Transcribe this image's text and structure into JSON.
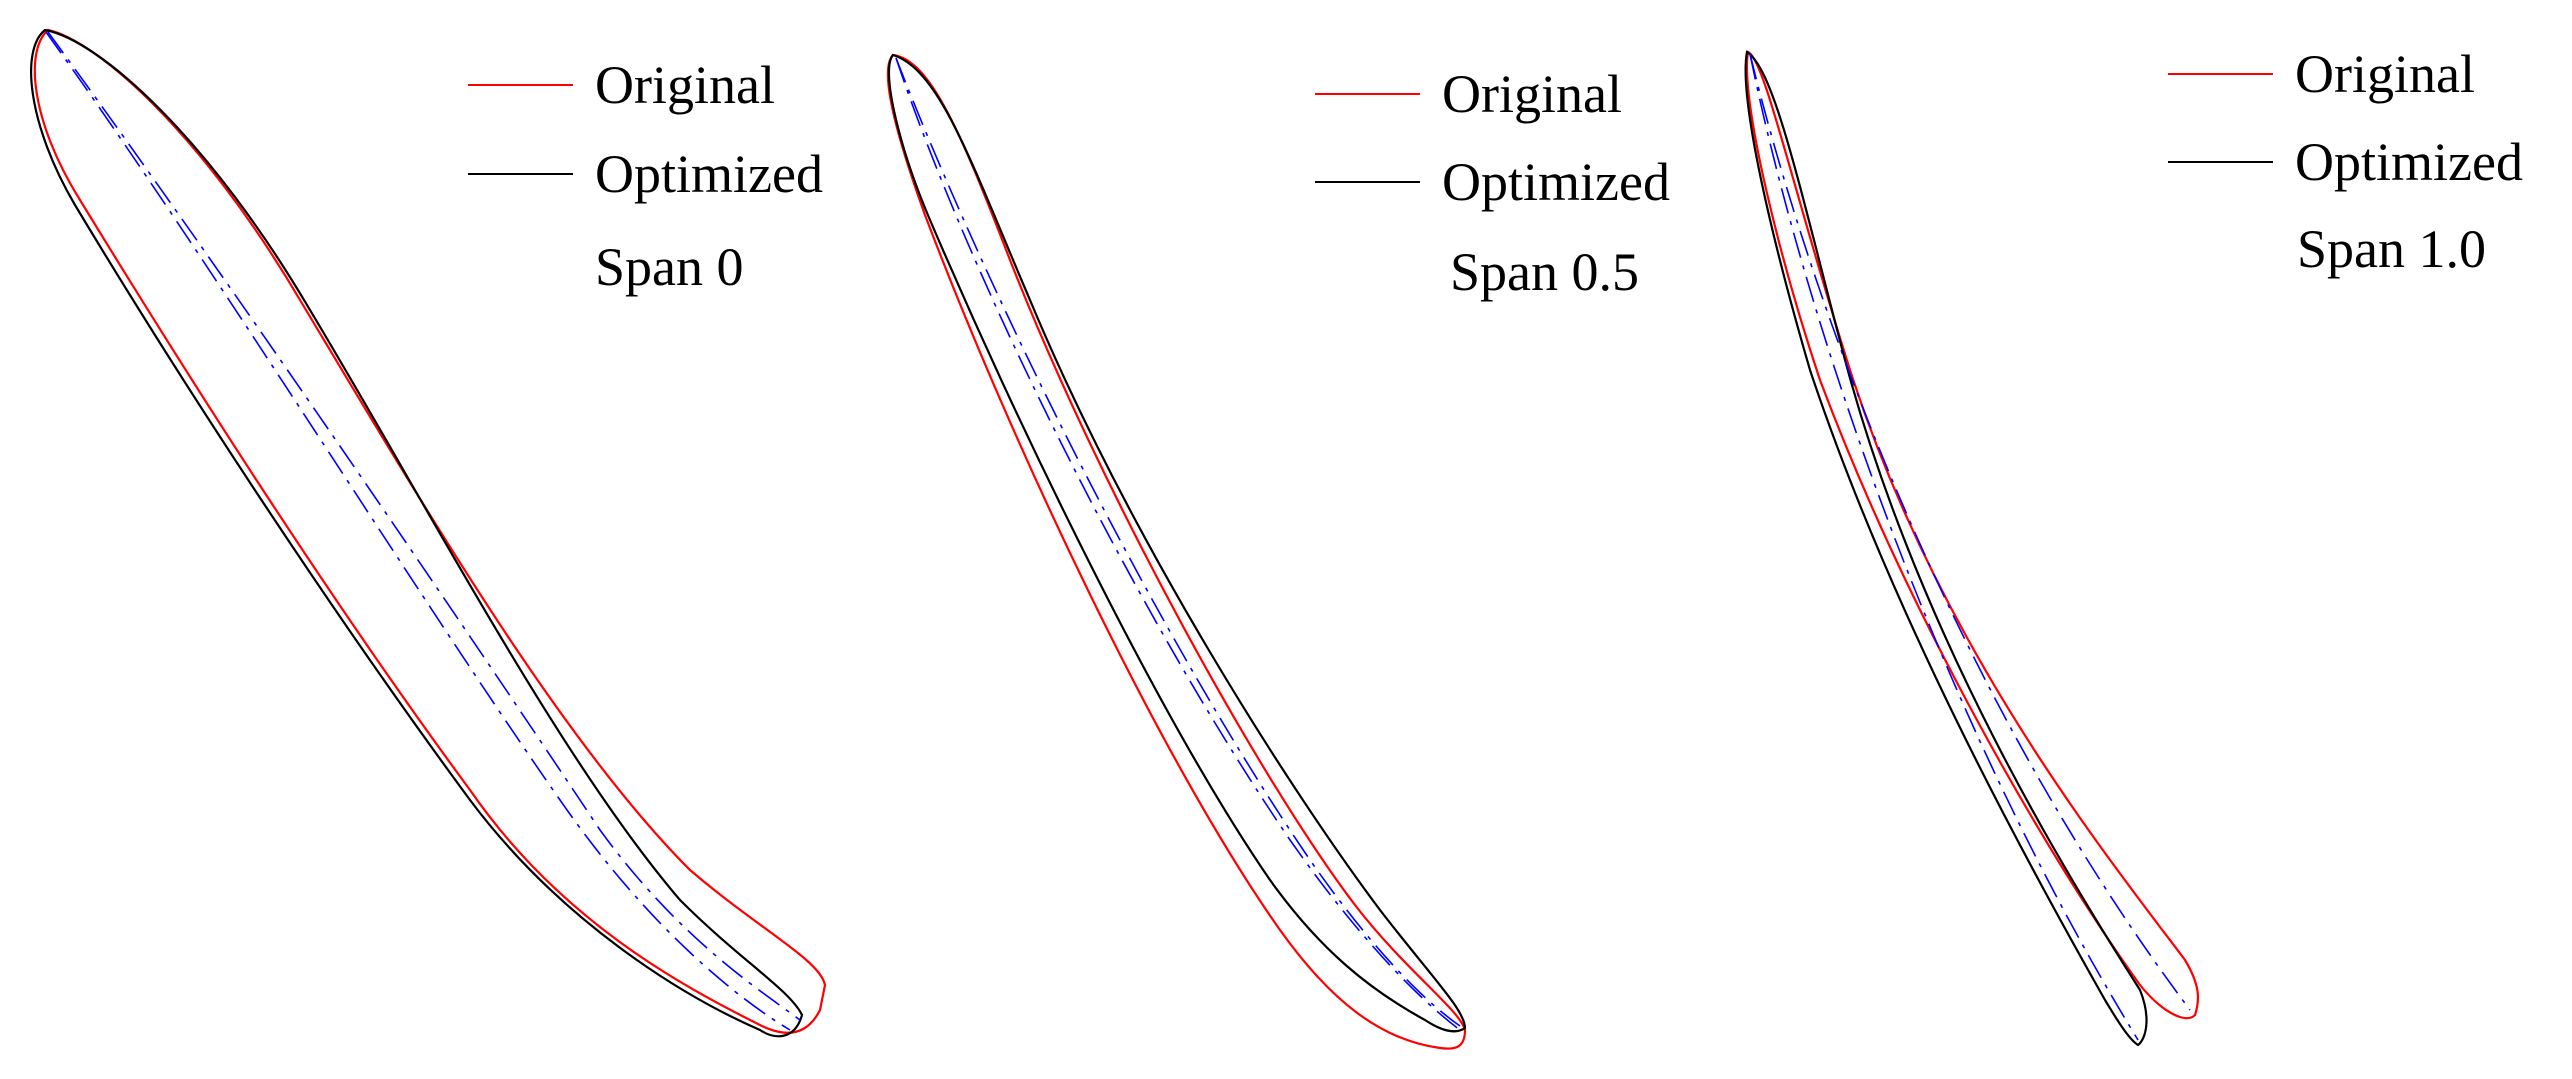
{
  "figure": {
    "colors": {
      "original": "#ff0000",
      "optimized": "#000000",
      "camber_line": "#0000ff",
      "background": "#ffffff"
    },
    "legend": {
      "original_label": "Original",
      "optimized_label": "Optimized"
    },
    "panels": [
      {
        "span_label": "Span 0"
      },
      {
        "span_label": "Span 0.5"
      },
      {
        "span_label": "Span 1.0"
      }
    ]
  }
}
